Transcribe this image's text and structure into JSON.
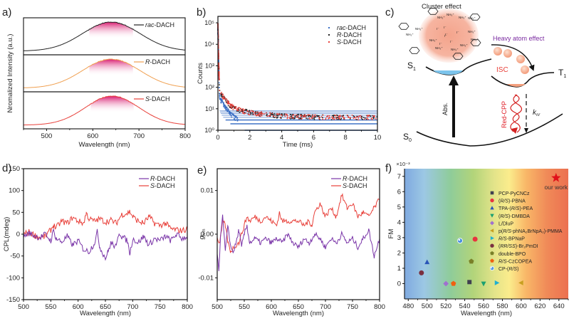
{
  "panel_labels": {
    "a": "a)",
    "b": "b)",
    "c": "c)",
    "d": "d)",
    "e": "e)",
    "f": "f)"
  },
  "colors": {
    "rac": "#222222",
    "R_orange": "#f0a050",
    "S_red": "#e8403a",
    "R_purple": "#7a35a8",
    "S_red2": "#e8403a",
    "blue": "#3a6fc4",
    "magenta": "#d81b70",
    "star": "#e0101a"
  },
  "chart_data": [
    {
      "id": "a",
      "type": "line",
      "title": "",
      "xlabel": "Wavelength (nm)",
      "ylabel": "Nromalized Intensity (a.u.)",
      "xlim": [
        450,
        800
      ],
      "xticks": [
        500,
        600,
        700,
        800
      ],
      "grid": false,
      "series": [
        {
          "name": "rac-DACH",
          "prefix": "rac",
          "suffix": "-DACH",
          "peak": 640,
          "width": 62
        },
        {
          "name": "R-DACH",
          "prefix": "R",
          "suffix": "-DACH",
          "peak": 640,
          "width": 62
        },
        {
          "name": "S-DACH",
          "prefix": "S",
          "suffix": "-DACH",
          "peak": 642,
          "width": 58
        }
      ],
      "legend": "top-right"
    },
    {
      "id": "b",
      "type": "scatter",
      "xlabel": "Time (ms)",
      "ylabel": "Counts",
      "xlim": [
        0,
        10
      ],
      "ylim_log10": [
        0,
        5.3
      ],
      "xticks": [
        0,
        2,
        4,
        6,
        8,
        10
      ],
      "yticks": [
        "10⁰",
        "10¹",
        "10²",
        "10³",
        "10⁴",
        "10⁵"
      ],
      "series": [
        {
          "name": "rac-DACH",
          "prefix": "rac",
          "suffix": "-DACH",
          "tail": 1
        },
        {
          "name": "R-DACH",
          "prefix": "R",
          "suffix": "-DACH",
          "tail": 4
        },
        {
          "name": "S-DACH",
          "prefix": "S",
          "suffix": "-DACH",
          "tail": 4
        }
      ],
      "legend": "top-right"
    },
    {
      "id": "d",
      "type": "line",
      "xlabel": "Wavelength (nm)",
      "ylabel": "CPL(mdeg)",
      "xlim": [
        500,
        800
      ],
      "ylim": [
        -150,
        150
      ],
      "xticks": [
        500,
        550,
        600,
        650,
        700,
        750,
        800
      ],
      "yticks": [
        -150,
        -100,
        -50,
        0,
        50,
        100,
        150
      ],
      "series": [
        {
          "name": "R-DACH",
          "prefix": "R",
          "suffix": "-DACH",
          "x": [
            500,
            510,
            520,
            530,
            540,
            550,
            555,
            560,
            570,
            580,
            590,
            600,
            610,
            620,
            630,
            635,
            640,
            650,
            655,
            660,
            670,
            675,
            680,
            690,
            695,
            700,
            710,
            720,
            730,
            740,
            750,
            760,
            770,
            780,
            790,
            800
          ],
          "y": [
            -5,
            2,
            -3,
            -8,
            0,
            -15,
            8,
            -10,
            -18,
            -5,
            -25,
            -15,
            -35,
            -40,
            -20,
            5,
            -30,
            -55,
            -40,
            -20,
            -30,
            5,
            -5,
            -15,
            -45,
            -10,
            -20,
            -5,
            -25,
            -10,
            -15,
            -5,
            -15,
            0,
            -10,
            -5
          ]
        },
        {
          "name": "S-DACH",
          "prefix": "S",
          "suffix": "-DACH",
          "x": [
            500,
            510,
            520,
            530,
            540,
            550,
            555,
            560,
            570,
            580,
            590,
            600,
            610,
            615,
            620,
            630,
            640,
            650,
            660,
            670,
            680,
            690,
            695,
            700,
            710,
            720,
            730,
            740,
            750,
            760,
            770,
            780,
            790,
            800
          ],
          "y": [
            0,
            5,
            -2,
            -8,
            -5,
            10,
            20,
            15,
            30,
            25,
            38,
            30,
            25,
            48,
            35,
            30,
            35,
            28,
            32,
            25,
            45,
            48,
            52,
            40,
            30,
            25,
            40,
            25,
            20,
            25,
            12,
            10,
            8,
            12
          ]
        }
      ],
      "legend": "top-right"
    },
    {
      "id": "e",
      "type": "line",
      "xlabel": "Wavelength (nm)",
      "ylabel": "g_lum",
      "xlim": [
        500,
        800
      ],
      "ylim": [
        -0.015,
        0.015
      ],
      "xticks": [
        500,
        550,
        600,
        650,
        700,
        750,
        800
      ],
      "yticks": [
        -0.01,
        0.0,
        0.01
      ],
      "ytick_labels": [
        "-0.01",
        "0.00",
        "0.01"
      ],
      "series": [
        {
          "name": "R-DACH",
          "prefix": "R",
          "suffix": "-DACH",
          "x": [
            500,
            503,
            507,
            510,
            515,
            520,
            525,
            530,
            535,
            540,
            545,
            550,
            555,
            560,
            570,
            580,
            590,
            600,
            610,
            620,
            630,
            640,
            650,
            660,
            670,
            680,
            690,
            700,
            710,
            720,
            730,
            740,
            750,
            760,
            770,
            780,
            785,
            790,
            800
          ],
          "y": [
            -0.004,
            -0.008,
            0.001,
            0.004,
            -0.004,
            0.002,
            -0.003,
            -0.004,
            -0.002,
            0.001,
            -0.003,
            0.0,
            0.002,
            -0.002,
            -0.001,
            -0.002,
            -0.001,
            -0.002,
            -0.001,
            -0.002,
            0.0,
            -0.002,
            -0.003,
            -0.001,
            -0.002,
            0.0,
            -0.001,
            -0.003,
            -0.001,
            -0.002,
            0.0,
            -0.002,
            -0.001,
            -0.003,
            -0.001,
            0.001,
            -0.002,
            -0.005,
            -0.001
          ]
        },
        {
          "name": "S-DACH",
          "prefix": "S",
          "suffix": "-DACH",
          "x": [
            500,
            505,
            510,
            515,
            520,
            525,
            530,
            540,
            550,
            555,
            560,
            570,
            580,
            590,
            600,
            610,
            615,
            620,
            630,
            640,
            650,
            660,
            670,
            675,
            680,
            690,
            700,
            710,
            720,
            730,
            740,
            750,
            760,
            770,
            780,
            790,
            800
          ],
          "y": [
            -0.001,
            -0.002,
            0.003,
            0.002,
            -0.002,
            -0.004,
            -0.003,
            -0.002,
            0.002,
            0.004,
            0.003,
            0.004,
            0.003,
            0.004,
            0.003,
            0.002,
            0.005,
            0.003,
            0.003,
            0.003,
            0.003,
            0.002,
            0.003,
            0.002,
            0.005,
            0.007,
            0.004,
            0.006,
            0.004,
            0.009,
            0.006,
            0.007,
            0.004,
            0.005,
            0.004,
            0.006,
            0.008
          ]
        }
      ],
      "legend": "top-right"
    },
    {
      "id": "f",
      "type": "scatter",
      "xlabel": "Wavelength (nm)",
      "ylabel": "FM",
      "y_multiplier": "×10⁻³",
      "xlim": [
        476,
        650
      ],
      "ylim": [
        -1,
        7.5
      ],
      "xticks": [
        480,
        500,
        520,
        540,
        560,
        580,
        600,
        620,
        640
      ],
      "yticks": [
        0,
        1,
        2,
        3,
        4,
        5,
        6,
        7
      ],
      "background": "visible-spectrum gradient",
      "annotation": "our work",
      "series": [
        {
          "name": "PCP-PyCNCz",
          "label": "PCP-PyCNCz",
          "marker": "square",
          "color": "#404050",
          "x": 545,
          "y": 0.1
        },
        {
          "name": "(R/S)-PBNA",
          "label": "(R/S)-PBNA",
          "marker": "circle",
          "color": "#e8343e",
          "x": 551,
          "y": 2.9
        },
        {
          "name": "TPA-(R/S)-PEA",
          "label": "TPA-(R/S)-PEA",
          "marker": "triangle-up",
          "color": "#2a55b8",
          "x": 500,
          "y": 1.4
        },
        {
          "name": "(R/S)-DMBDA",
          "label": "(R/S)-DMBDA",
          "marker": "triangle-down",
          "color": "#1aa070",
          "x": 560,
          "y": 0.0
        },
        {
          "name": "L/DluP",
          "label": "L/DluP",
          "marker": "diamond",
          "color": "#a070d0",
          "x": 520,
          "y": 0.0
        },
        {
          "name": "p(R/S-phNA2BrNpA2)-PMMA",
          "label": "p(R/S-phNA₂BrNpA₂)-PMMA",
          "marker": "triangle-left",
          "color": "#c8a020",
          "x": 600,
          "y": 0.05
        },
        {
          "name": "R/S-BPNaP",
          "label": "R/S-BPNaP",
          "marker": "triangle-right",
          "color": "#20b0d0",
          "x": 574,
          "y": 0.05
        },
        {
          "name": "(RR/SS)-Br2PmDI",
          "label": "(RR/SS)-Br₂PmDI",
          "marker": "circle",
          "color": "#7a3040",
          "x": 494,
          "y": 0.7
        },
        {
          "name": "double-BPO",
          "label": "double-BPO",
          "marker": "pentagon",
          "color": "#7a8028",
          "x": 547,
          "y": 1.45
        },
        {
          "name": "R/S-CzCOPEA",
          "label": "R/S-CzCOPEA",
          "marker": "pentagon",
          "color": "#f06010",
          "x": 528,
          "y": 0.0
        },
        {
          "name": "CP-(R/S)",
          "label": "CP-(R/S)",
          "marker": "circle-half",
          "color": "#4a90e0",
          "x": 535,
          "y": 2.8
        },
        {
          "name": "our work",
          "label": "our work",
          "marker": "star",
          "color": "#e0101a",
          "x": 637,
          "y": 6.9
        }
      ],
      "legend": "center-right"
    }
  ],
  "diagram_c": {
    "title": "Cluster effect",
    "heavy_atom": "Heavy atom effect",
    "isc": "ISC",
    "abs": "Abs.",
    "red_cpp": "Red-CPP",
    "knr": "k",
    "knr_sub": "nr",
    "s1": "S",
    "s1_sub": "1",
    "t1": "T",
    "t1_sub": "1",
    "s0": "S",
    "s0_sub": "0",
    "nh3": "NH₃⁺",
    "iodide": "I⁻"
  }
}
